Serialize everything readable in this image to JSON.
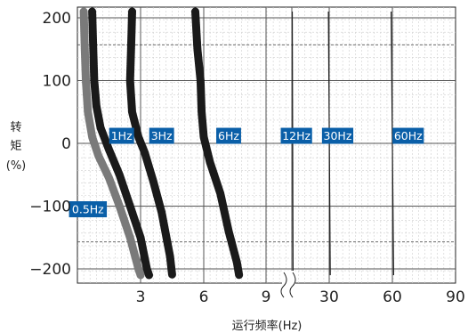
{
  "chart_data": {
    "type": "line",
    "xlabel": "运行频率(Hz)",
    "ylabel_lines": [
      "转",
      "矩",
      "(%)"
    ],
    "x_ticks": [
      "3",
      "6",
      "9",
      "30",
      "60",
      "90"
    ],
    "y_ticks": [
      "200",
      "100",
      "0",
      "−100",
      "−200"
    ],
    "ylim": [
      -220,
      220
    ],
    "x_axis_break": "between 9 and 30",
    "grid": true,
    "colors": {
      "band_dark": "#1a1a1a",
      "band_gray": "#7a7a7a",
      "label_bg": "#0a5fa8",
      "label_text": "#ffffff"
    },
    "series": [
      {
        "label": "0.5Hz",
        "style": "band_gray",
        "points": [
          [
            0.3,
            210
          ],
          [
            0.35,
            150
          ],
          [
            0.4,
            100
          ],
          [
            0.5,
            50
          ],
          [
            0.7,
            10
          ],
          [
            1.0,
            -20
          ],
          [
            1.5,
            -55
          ],
          [
            2.0,
            -100
          ],
          [
            2.5,
            -150
          ],
          [
            2.9,
            -200
          ],
          [
            3.0,
            -210
          ]
        ]
      },
      {
        "label": "1Hz",
        "style": "band_dark",
        "points": [
          [
            0.7,
            210
          ],
          [
            0.75,
            150
          ],
          [
            0.8,
            100
          ],
          [
            0.9,
            60
          ],
          [
            1.1,
            25
          ],
          [
            1.5,
            -10
          ],
          [
            2.0,
            -50
          ],
          [
            2.5,
            -100
          ],
          [
            3.0,
            -150
          ],
          [
            3.3,
            -200
          ],
          [
            3.4,
            -210
          ]
        ]
      },
      {
        "label": "3Hz",
        "style": "band_dark",
        "points": [
          [
            2.6,
            210
          ],
          [
            2.55,
            150
          ],
          [
            2.5,
            100
          ],
          [
            2.6,
            50
          ],
          [
            2.9,
            10
          ],
          [
            3.2,
            -15
          ],
          [
            3.6,
            -60
          ],
          [
            4.0,
            -110
          ],
          [
            4.4,
            -180
          ],
          [
            4.5,
            -210
          ]
        ]
      },
      {
        "label": "6Hz",
        "style": "band_dark",
        "points": [
          [
            5.6,
            210
          ],
          [
            5.7,
            150
          ],
          [
            5.85,
            100
          ],
          [
            5.9,
            50
          ],
          [
            6.0,
            10
          ],
          [
            6.3,
            -30
          ],
          [
            6.8,
            -80
          ],
          [
            7.2,
            -140
          ],
          [
            7.6,
            -190
          ],
          [
            7.7,
            -210
          ]
        ]
      },
      {
        "label": "12Hz",
        "style": "line",
        "points": [
          [
            12.2,
            210
          ],
          [
            12.6,
            -210
          ]
        ]
      },
      {
        "label": "30Hz",
        "style": "line",
        "points": [
          [
            29.6,
            210
          ],
          [
            30.5,
            -210
          ]
        ]
      },
      {
        "label": "60Hz",
        "style": "line",
        "points": [
          [
            59.4,
            210
          ],
          [
            60.6,
            -210
          ]
        ]
      }
    ],
    "labels": [
      {
        "text": "0.5Hz",
        "x": 0.5,
        "y": -105
      },
      {
        "text": "1Hz",
        "x": 2.1,
        "y": 12
      },
      {
        "text": "3Hz",
        "x": 4.0,
        "y": 12
      },
      {
        "text": "6Hz",
        "x": 7.2,
        "y": 12
      },
      {
        "text": "12Hz",
        "x": 14.2,
        "y": 12
      },
      {
        "text": "30Hz",
        "x": 34.0,
        "y": 12
      },
      {
        "text": "60Hz",
        "x": 67.5,
        "y": 12
      }
    ]
  }
}
